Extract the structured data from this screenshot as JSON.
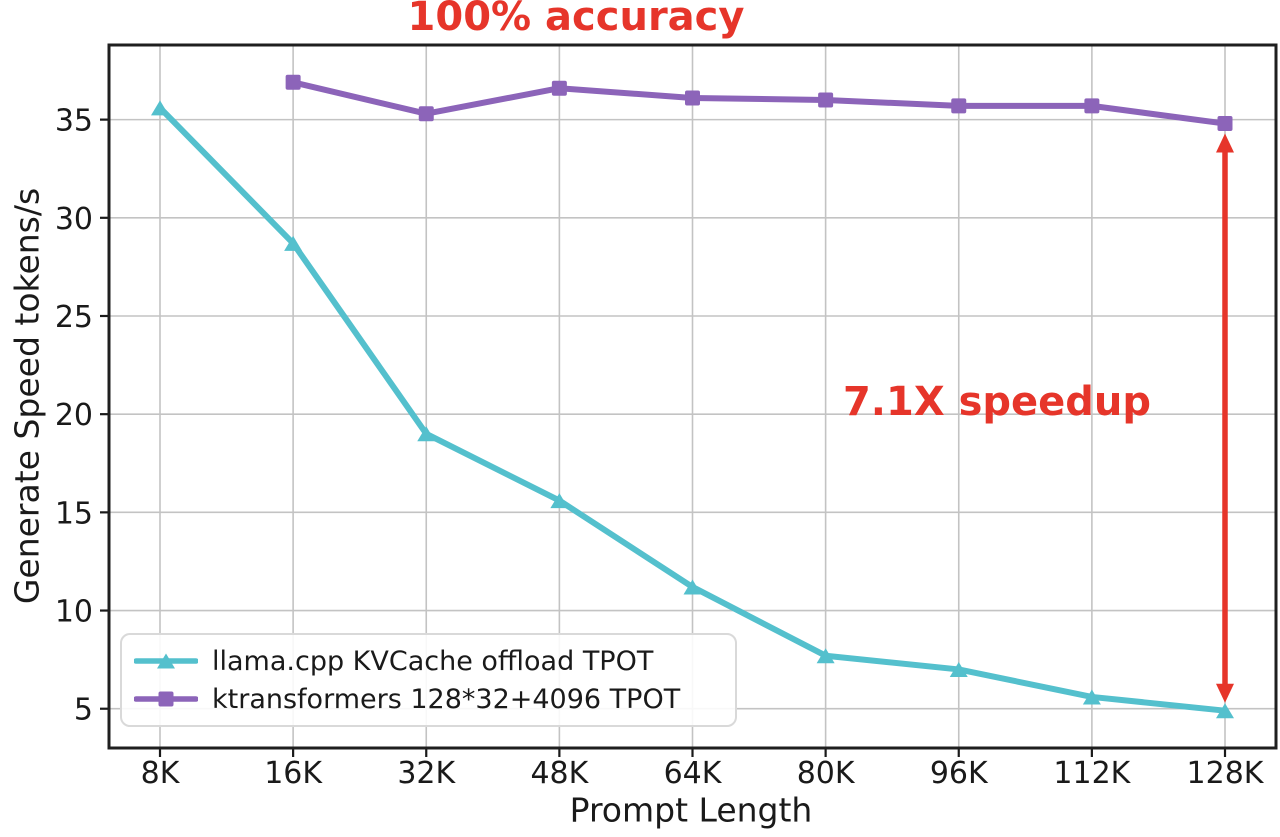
{
  "chart_data": {
    "type": "line",
    "title": "100% accuracy",
    "xlabel": "Prompt Length",
    "ylabel": "Generate Speed tokens/s",
    "categories": [
      "8K",
      "16K",
      "32K",
      "48K",
      "64K",
      "80K",
      "96K",
      "112K",
      "128K"
    ],
    "series": [
      {
        "label": "llama.cpp KVCache offload TPOT",
        "color": "#54c0cd",
        "marker": "triangle",
        "values": [
          35.6,
          28.7,
          19.0,
          15.6,
          11.2,
          7.7,
          7.0,
          5.6,
          4.9
        ]
      },
      {
        "label": "ktransformers 128*32+4096 TPOT",
        "color": "#8c64b9",
        "marker": "square",
        "values": [
          null,
          36.9,
          35.3,
          36.6,
          36.1,
          36.0,
          35.7,
          35.7,
          34.8
        ]
      }
    ],
    "ylim": [
      3.0,
      38.8
    ],
    "yticks": [
      5,
      10,
      15,
      20,
      25,
      30,
      35
    ],
    "grid": true,
    "grid_color": "#c3c3c3",
    "axis_color": "#1f1f1f",
    "tick_label_color": "#1a1a1a",
    "accent_color": "#e6352a",
    "legend_position": "lower left",
    "annotation": {
      "text": "7.1X speedup"
    },
    "arrow": {
      "category": "128K",
      "from_value": 34.8,
      "to_value": 4.9
    }
  }
}
